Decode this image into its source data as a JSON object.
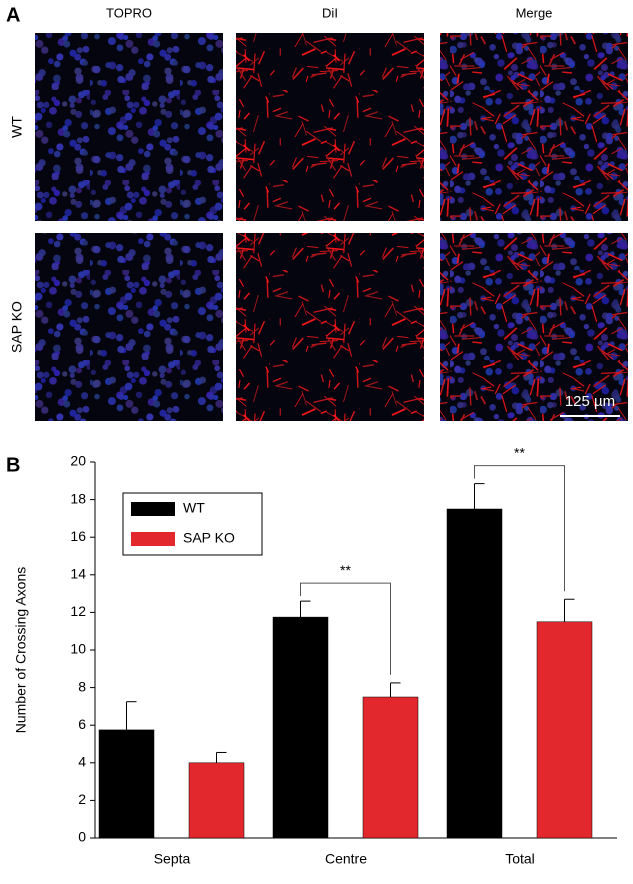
{
  "panel_a": {
    "label": "A",
    "columns": [
      "TOPRO",
      "DiI",
      "Merge"
    ],
    "rows": [
      "WT",
      "SAP KO"
    ],
    "scale_bar": "125 µm"
  },
  "chart_data": {
    "type": "bar",
    "panel_label": "B",
    "ylabel": "Number of Crossing Axons",
    "categories": [
      "Septa",
      "Centre",
      "Total"
    ],
    "series": [
      {
        "name": "WT",
        "color": "#000000",
        "values": [
          5.75,
          11.75,
          17.5
        ],
        "errors": [
          1.5,
          0.85,
          1.35
        ]
      },
      {
        "name": "SAP KO",
        "color": "#e3282d",
        "values": [
          4.0,
          7.5,
          11.5
        ],
        "errors": [
          0.55,
          0.75,
          1.2
        ]
      }
    ],
    "annotations": [
      "**",
      "**"
    ],
    "ylim": [
      0,
      20
    ],
    "yticks": [
      0,
      2,
      4,
      6,
      8,
      10,
      12,
      14,
      16,
      18,
      20
    ],
    "grid": false,
    "legend": "upper left"
  }
}
